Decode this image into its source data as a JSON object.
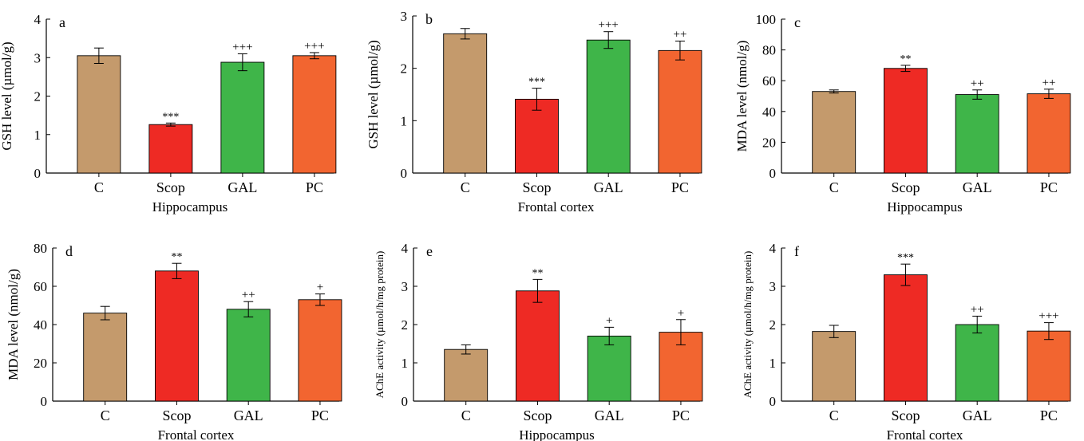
{
  "palette": {
    "C": "#C49A6C",
    "Scop": "#EE2A24",
    "GAL": "#3FB549",
    "PC": "#F26530",
    "sig_label_colors": [
      "#555555",
      "#555555",
      "#333333",
      "#333333"
    ]
  },
  "chart_data": [
    {
      "type": "bar",
      "panel": "a",
      "categories": [
        "C",
        "Scop",
        "GAL",
        "PC"
      ],
      "values": [
        3.05,
        1.26,
        2.88,
        3.05
      ],
      "errors": [
        0.2,
        0.04,
        0.22,
        0.08
      ],
      "annotations": [
        "",
        "***",
        "+++",
        "+++"
      ],
      "xlabel": "Hippocampus",
      "ylabel": "GSH level (µmol/g)",
      "ylim": [
        0,
        4
      ],
      "yticks": [
        0,
        1,
        2,
        3,
        4
      ]
    },
    {
      "type": "bar",
      "panel": "b",
      "categories": [
        "C",
        "Scop",
        "GAL",
        "PC"
      ],
      "values": [
        2.66,
        1.41,
        2.54,
        2.34
      ],
      "errors": [
        0.1,
        0.21,
        0.16,
        0.18
      ],
      "annotations": [
        "",
        "***",
        "+++",
        "++"
      ],
      "xlabel": "Frontal cortex",
      "ylabel": "GSH level (µmol/g)",
      "ylim": [
        0,
        3
      ],
      "yticks": [
        0,
        1,
        2,
        3
      ]
    },
    {
      "type": "bar",
      "panel": "c",
      "categories": [
        "C",
        "Scop",
        "GAL",
        "PC"
      ],
      "values": [
        53,
        68,
        51,
        51.5
      ],
      "errors": [
        1,
        2,
        3,
        3
      ],
      "annotations": [
        "",
        "**",
        "++",
        "++"
      ],
      "xlabel": "Hippocampus",
      "ylabel": "MDA level (nmol/g)",
      "ylim": [
        0,
        100
      ],
      "yticks": [
        0,
        20,
        40,
        60,
        80,
        100
      ]
    },
    {
      "type": "bar",
      "panel": "d",
      "categories": [
        "C",
        "Scop",
        "GAL",
        "PC"
      ],
      "values": [
        46,
        68,
        48,
        53
      ],
      "errors": [
        3.5,
        4,
        4,
        3
      ],
      "annotations": [
        "",
        "**",
        "++",
        "+"
      ],
      "xlabel": "Frontal cortex",
      "ylabel": "MDA level (nmol/g)",
      "ylim": [
        0,
        80
      ],
      "yticks": [
        0,
        20,
        40,
        60,
        80
      ]
    },
    {
      "type": "bar",
      "panel": "e",
      "categories": [
        "C",
        "Scop",
        "GAL",
        "PC"
      ],
      "values": [
        1.35,
        2.88,
        1.7,
        1.8
      ],
      "errors": [
        0.12,
        0.3,
        0.23,
        0.33
      ],
      "annotations": [
        "",
        "**",
        "+",
        "+"
      ],
      "xlabel": "Hippocampus",
      "ylabel": "AChE activity (µmol/h/mg protein)",
      "ylim": [
        0,
        4
      ],
      "yticks": [
        0,
        1,
        2,
        3,
        4
      ]
    },
    {
      "type": "bar",
      "panel": "f",
      "categories": [
        "C",
        "Scop",
        "GAL",
        "PC"
      ],
      "values": [
        1.82,
        3.3,
        2.0,
        1.83
      ],
      "errors": [
        0.16,
        0.28,
        0.22,
        0.22
      ],
      "annotations": [
        "",
        "***",
        "++",
        "+++"
      ],
      "xlabel": "Frontal cortex",
      "ylabel": "AChE activity (µmol/h/mg protein)",
      "ylim": [
        0,
        4
      ],
      "yticks": [
        0,
        1,
        2,
        3,
        4
      ]
    }
  ]
}
